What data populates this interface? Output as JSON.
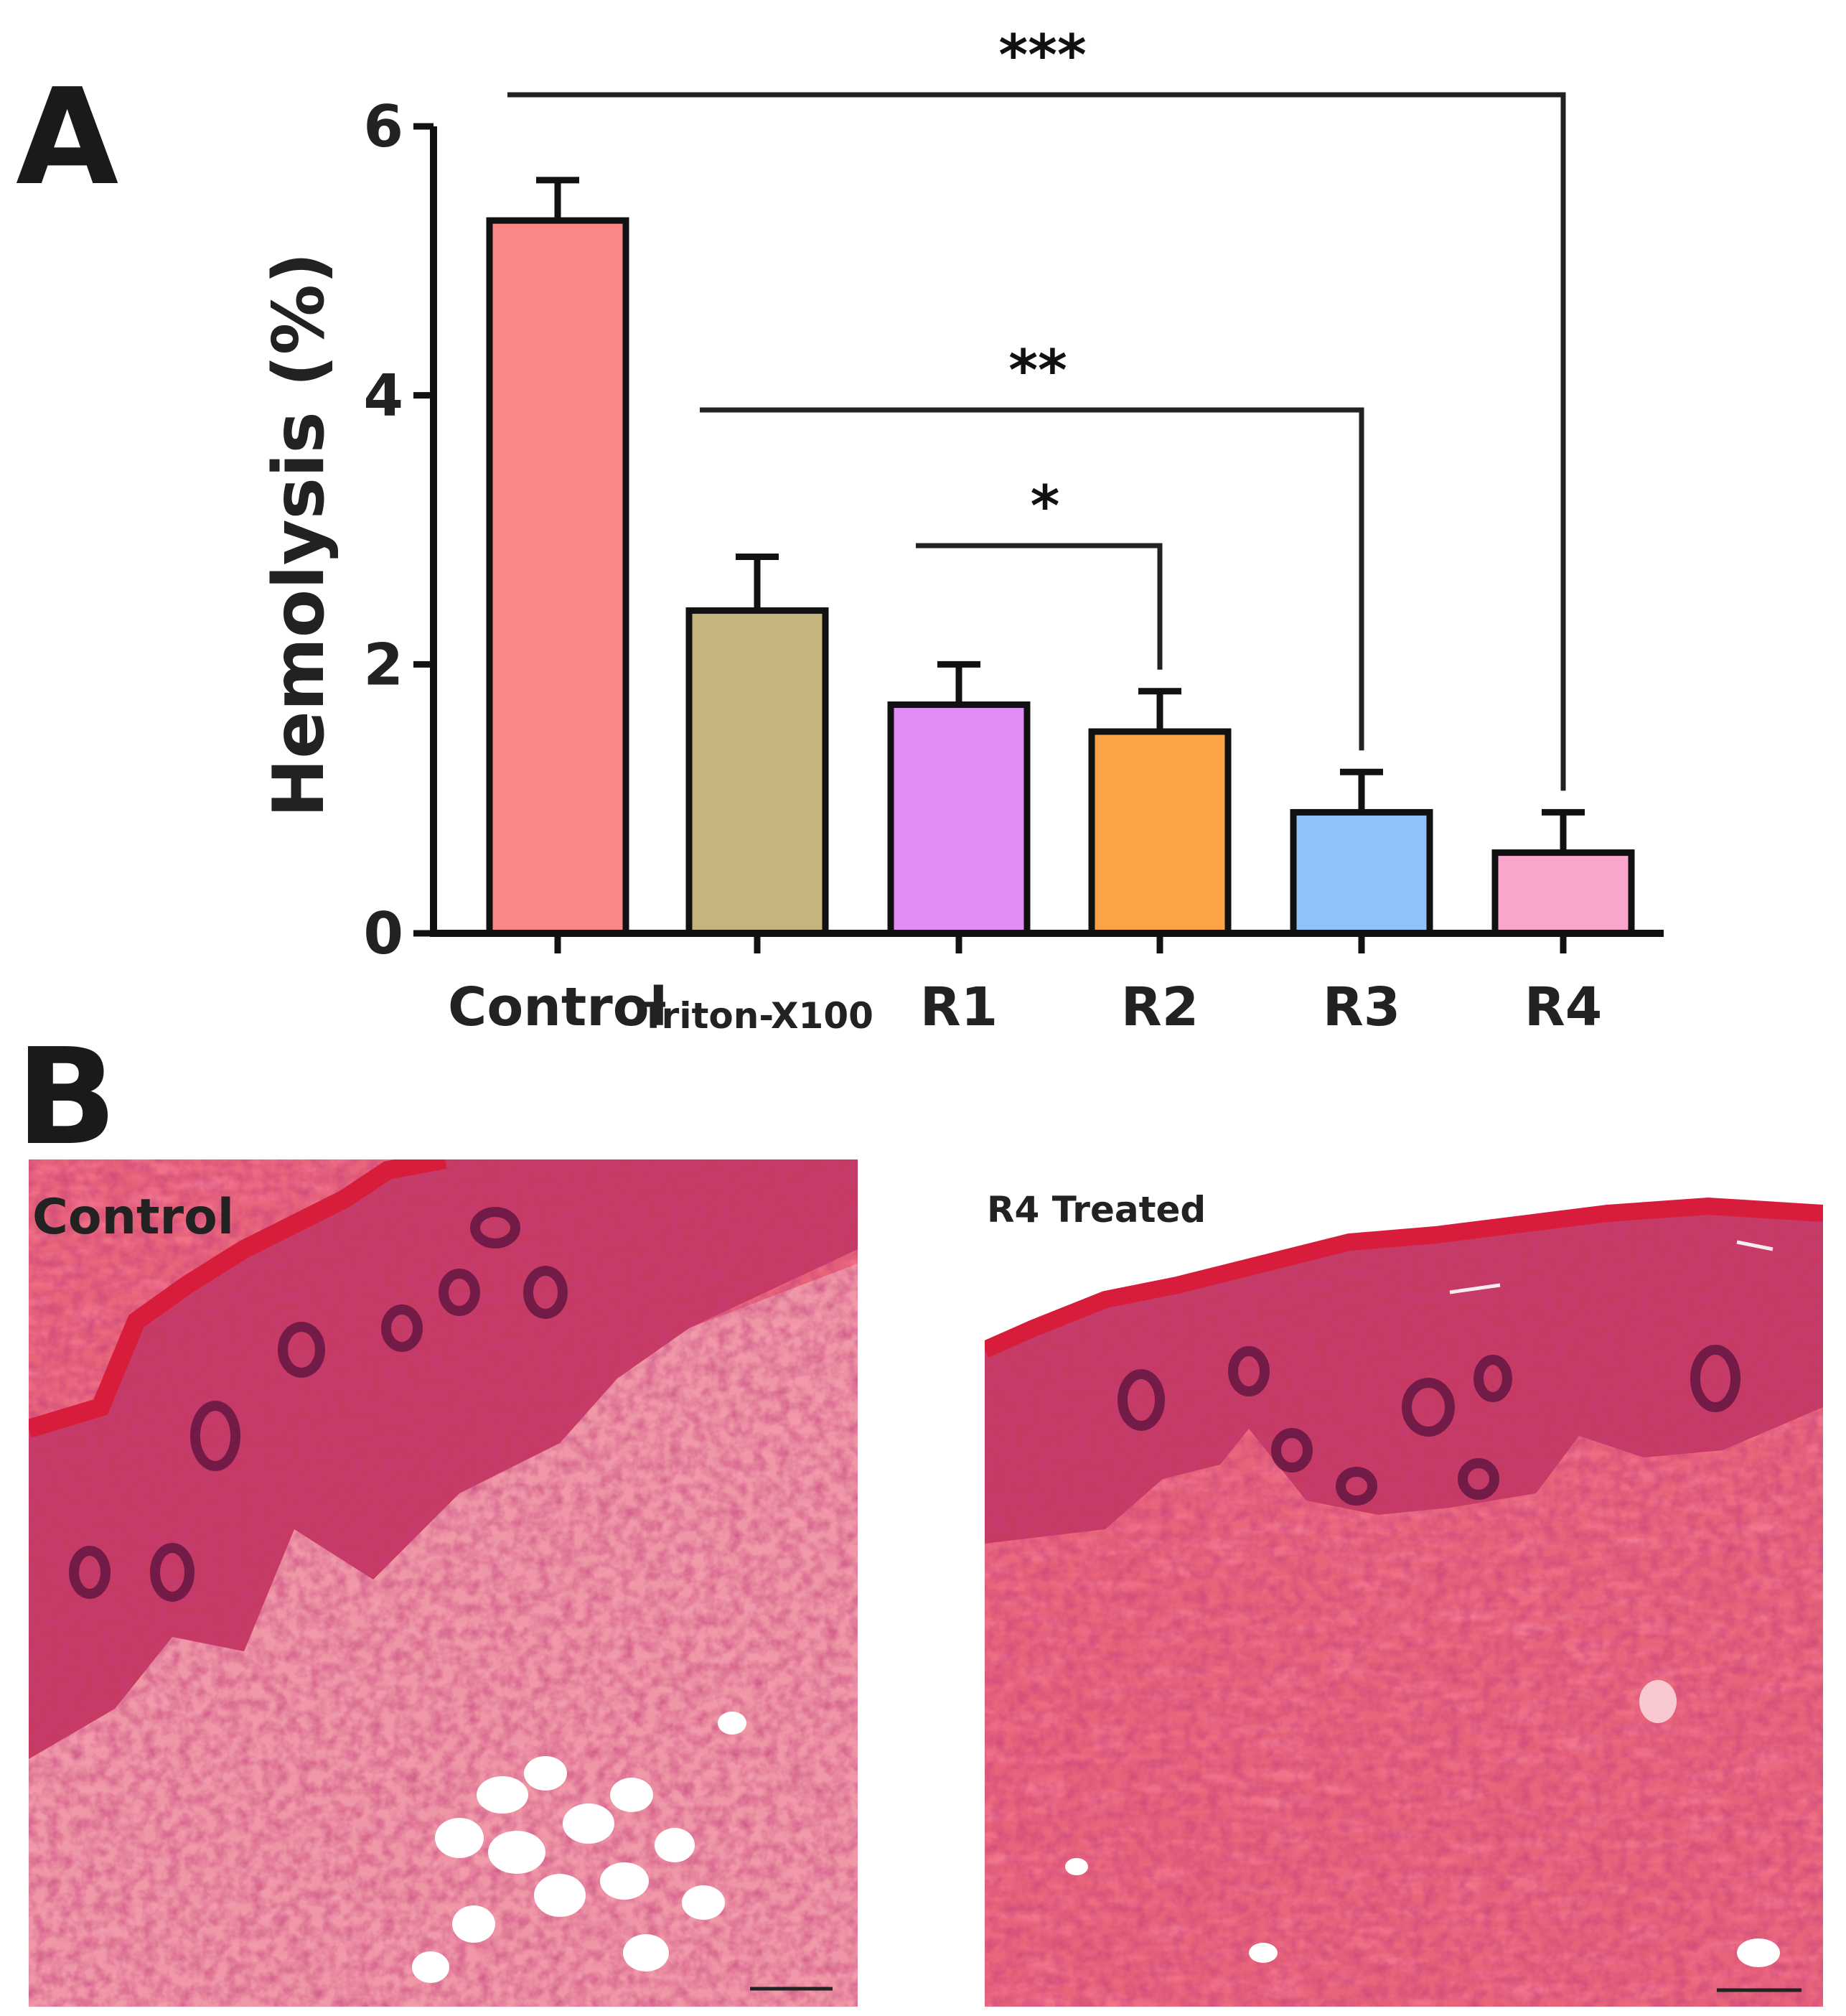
{
  "panels": {
    "a_label": "A",
    "b_label": "B"
  },
  "chart_data": {
    "type": "bar",
    "title": "",
    "xlabel": "",
    "ylabel": "Hemolysis (%)",
    "ylim": [
      0,
      6
    ],
    "yticks": [
      "0",
      "2",
      "4",
      "6"
    ],
    "categories": [
      "Control",
      "Triton-X100",
      "R1",
      "R2",
      "R3",
      "R4"
    ],
    "values": [
      5.3,
      2.4,
      1.7,
      1.5,
      0.9,
      0.6
    ],
    "errors": [
      0.3,
      0.4,
      0.3,
      0.3,
      0.3,
      0.3
    ],
    "colors": [
      "#fb8686",
      "#c4b47e",
      "#e08bf6",
      "#fba346",
      "#91c1fb",
      "#f9a6cd"
    ],
    "significance": [
      {
        "from": "R1",
        "to": "R2",
        "label": "*"
      },
      {
        "from": "Triton-X100",
        "to": "R3",
        "label": "**"
      },
      {
        "from": "Control",
        "to": "R4",
        "label": "***"
      }
    ],
    "grid": false,
    "legend": "none"
  },
  "micrographs": [
    {
      "label": "Control"
    },
    {
      "label": "R4 Treated"
    }
  ]
}
